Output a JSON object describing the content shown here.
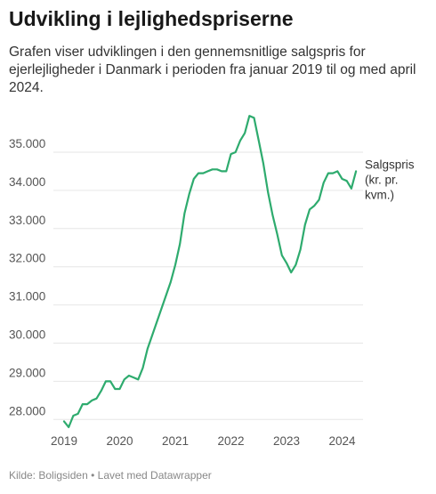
{
  "header": {
    "title": "Udvikling i lejlighedspriserne",
    "subtitle": "Grafen viser udviklingen i den gennemsnitlige salgspris for ejerlejligheder i Danmark i perioden fra januar 2019 til og med april 2024."
  },
  "footer": {
    "source_label": "Kilde:",
    "source": "Boligsiden",
    "separator": "•",
    "credit_prefix": "Lavet med",
    "credit": "Datawrapper"
  },
  "colors": {
    "line": "#2eab6e",
    "grid": "#e6e6e6",
    "text": "#181818"
  },
  "chart_data": {
    "type": "line",
    "title": "Udvikling i lejlighedspriserne",
    "xlabel": "",
    "ylabel": "",
    "ylim": [
      27800,
      36100
    ],
    "yticks": [
      "35.000",
      "34.000",
      "33.000",
      "32.000",
      "31.000",
      "30.000",
      "29.000",
      "28.000"
    ],
    "ytick_values": [
      35000,
      34000,
      33000,
      32000,
      31000,
      30000,
      29000,
      28000
    ],
    "xticks": [
      "2019",
      "2020",
      "2021",
      "2022",
      "2023",
      "2024"
    ],
    "grid": true,
    "series": [
      {
        "name": "Salgspris (kr. pr. kvm.)",
        "label_lines": [
          "Salgspris",
          "(kr. pr.",
          "kvm.)"
        ],
        "x": [
          "2019-01",
          "2019-02",
          "2019-03",
          "2019-04",
          "2019-05",
          "2019-06",
          "2019-07",
          "2019-08",
          "2019-09",
          "2019-10",
          "2019-11",
          "2019-12",
          "2020-01",
          "2020-02",
          "2020-03",
          "2020-04",
          "2020-05",
          "2020-06",
          "2020-07",
          "2020-08",
          "2020-09",
          "2020-10",
          "2020-11",
          "2020-12",
          "2021-01",
          "2021-02",
          "2021-03",
          "2021-04",
          "2021-05",
          "2021-06",
          "2021-07",
          "2021-08",
          "2021-09",
          "2021-10",
          "2021-11",
          "2021-12",
          "2022-01",
          "2022-02",
          "2022-03",
          "2022-04",
          "2022-05",
          "2022-06",
          "2022-07",
          "2022-08",
          "2022-09",
          "2022-10",
          "2022-11",
          "2022-12",
          "2023-01",
          "2023-02",
          "2023-03",
          "2023-04",
          "2023-05",
          "2023-06",
          "2023-07",
          "2023-08",
          "2023-09",
          "2023-10",
          "2023-11",
          "2023-12",
          "2024-01",
          "2024-02",
          "2024-03",
          "2024-04"
        ],
        "values": [
          27950,
          27800,
          28100,
          28150,
          28400,
          28400,
          28500,
          28550,
          28750,
          29000,
          29000,
          28800,
          28800,
          29050,
          29150,
          29100,
          29050,
          29350,
          29850,
          30200,
          30550,
          30900,
          31250,
          31600,
          32050,
          32600,
          33400,
          33900,
          34300,
          34450,
          34450,
          34500,
          34550,
          34550,
          34500,
          34500,
          34950,
          35000,
          35300,
          35500,
          35950,
          35900,
          35300,
          34700,
          33950,
          33350,
          32850,
          32300,
          32100,
          31850,
          32050,
          32450,
          33100,
          33500,
          33600,
          33750,
          34200,
          34450,
          34450,
          34500,
          34300,
          34250,
          34050,
          34500
        ]
      }
    ]
  }
}
